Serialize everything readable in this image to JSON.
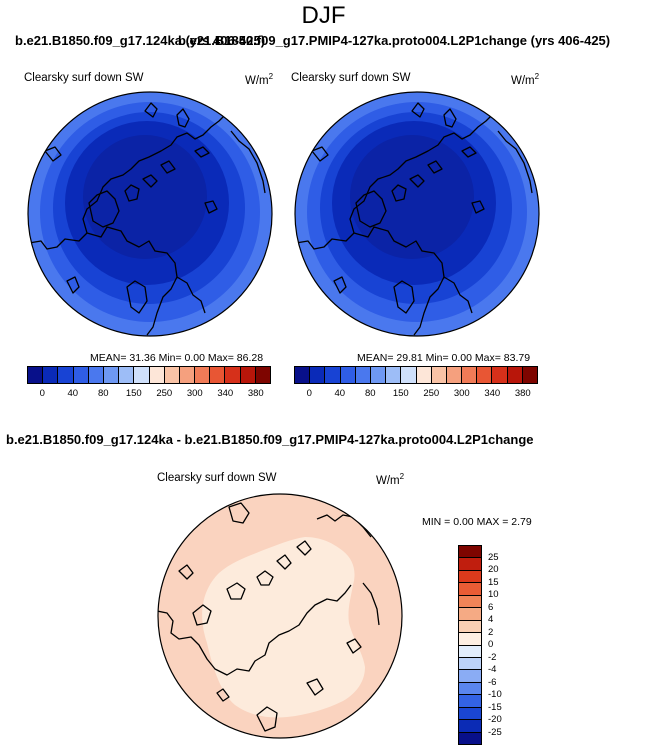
{
  "title": "DJF",
  "case_titles": {
    "left": "b.e21.B1850.f09_g17.124ka (yrs 406-425)",
    "right": "b.e21.B1850.f09_g17.PMIP4-127ka.proto004.L2P1change (yrs 406-425)"
  },
  "difference_title": "b.e21.B1850.f09_g17.124ka - b.e21.B1850.f09_g17.PMIP4-127ka.proto004.L2P1change",
  "panels": [
    {
      "variable": "Clearsky surf down SW",
      "units": "W/m",
      "units_sup": "2",
      "stats": "MEAN=  31.36  Min=   0.00  Max=  86.28"
    },
    {
      "variable": "Clearsky surf down SW",
      "units": "W/m",
      "units_sup": "2",
      "stats": "MEAN=  29.81  Min=   0.00  Max=  83.79"
    },
    {
      "variable": "Clearsky surf down SW",
      "units": "W/m",
      "units_sup": "2",
      "stats": "MIN =   0.00 MAX =   2.79"
    }
  ],
  "colors": {
    "abs_scale": [
      "#08108a",
      "#0a2ab8",
      "#1843d4",
      "#2f5de6",
      "#4a78ee",
      "#6e98f3",
      "#9dbdf7",
      "#cfe0fb",
      "#fde6d8",
      "#f9c3a6",
      "#f5a07e",
      "#f07b57",
      "#e85634",
      "#d6301a",
      "#b8160a",
      "#7e0500"
    ],
    "diff_scale": [
      "#08108a",
      "#0b2bb5",
      "#1a46d2",
      "#3363e4",
      "#5a86ee",
      "#8aacf4",
      "#bdd3f9",
      "#e2edfc",
      "#fdeee2",
      "#fad0b4",
      "#f5aa84",
      "#f08458",
      "#e95c35",
      "#dc3a1c",
      "#c01e0e",
      "#7e0500"
    ],
    "abs_ticks": [
      "0",
      "40",
      "80",
      "150",
      "250",
      "300",
      "340",
      "380"
    ],
    "diff_ticks": [
      "25",
      "20",
      "15",
      "10",
      "6",
      "4",
      "2",
      "0",
      "-2",
      "-4",
      "-6",
      "-10",
      "-15",
      "-20",
      "-25"
    ]
  },
  "chart_data": [
    {
      "type": "heatmap",
      "projection": "north-polar-stereographic",
      "variable": "Clearsky surf down SW",
      "units": "W/m2",
      "colorbar_levels": [
        0,
        40,
        80,
        150,
        250,
        300,
        340,
        380
      ],
      "latitude_bands": [
        {
          "band": "outer",
          "color_index": 4
        },
        {
          "band": "ring-2",
          "color_index": 3
        },
        {
          "band": "ring-3",
          "color_index": 2
        },
        {
          "band": "ring-4",
          "color_index": 1
        },
        {
          "band": "pole",
          "color_index": 0
        }
      ],
      "mean": 31.36,
      "min": 0.0,
      "max": 86.28
    },
    {
      "type": "heatmap",
      "projection": "north-polar-stereographic",
      "variable": "Clearsky surf down SW",
      "units": "W/m2",
      "colorbar_levels": [
        0,
        40,
        80,
        150,
        250,
        300,
        340,
        380
      ],
      "latitude_bands": [
        {
          "band": "outer",
          "color_index": 4
        },
        {
          "band": "ring-2",
          "color_index": 3
        },
        {
          "band": "ring-3",
          "color_index": 2
        },
        {
          "band": "ring-4",
          "color_index": 1
        },
        {
          "band": "pole",
          "color_index": 0
        }
      ],
      "mean": 29.81,
      "min": 0.0,
      "max": 83.79
    },
    {
      "type": "heatmap",
      "projection": "north-polar-stereographic",
      "variable": "Clearsky surf down SW",
      "units": "W/m2",
      "colorbar_levels": [
        -25,
        -20,
        -15,
        -10,
        -6,
        -4,
        -2,
        0,
        2,
        4,
        6,
        10,
        15,
        20,
        25
      ],
      "latitude_bands": [
        {
          "band": "outer",
          "range": [
            2,
            4
          ]
        },
        {
          "band": "inner",
          "range": [
            0,
            2
          ]
        }
      ],
      "min": 0.0,
      "max": 2.79
    }
  ]
}
